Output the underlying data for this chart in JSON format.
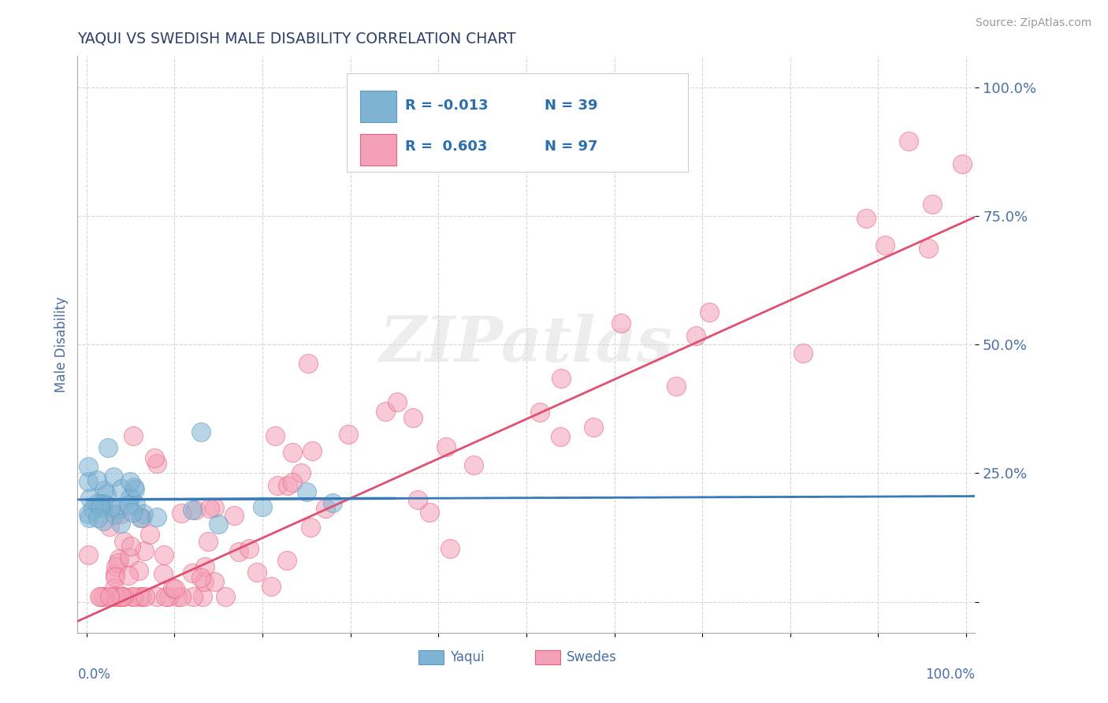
{
  "title": "YAQUI VS SWEDISH MALE DISABILITY CORRELATION CHART",
  "source": "Source: ZipAtlas.com",
  "ylabel": "Male Disability",
  "watermark": "ZIPatlas",
  "yaqui_color": "#7fb3d3",
  "swedes_color": "#f4a0b8",
  "yaqui_edge_color": "#5a9cc5",
  "swedes_edge_color": "#e8607a",
  "yaqui_line_color": "#3a7ab8",
  "swedes_line_color": "#e05070",
  "background_color": "#ffffff",
  "grid_color": "#cccccc",
  "title_color": "#2c3e6b",
  "axis_label_color": "#4a6fa5",
  "tick_color": "#4a6fa5",
  "legend_text_color": "#2c6fad",
  "legend_r1": "R = -0.013",
  "legend_n1": "N = 39",
  "legend_r2": "R =  0.603",
  "legend_n2": "N = 97"
}
